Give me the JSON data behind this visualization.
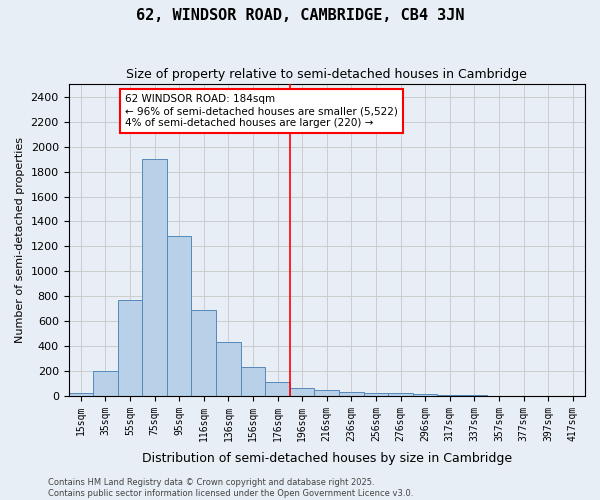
{
  "title": "62, WINDSOR ROAD, CAMBRIDGE, CB4 3JN",
  "subtitle": "Size of property relative to semi-detached houses in Cambridge",
  "xlabel": "Distribution of semi-detached houses by size in Cambridge",
  "ylabel": "Number of semi-detached properties",
  "bar_values": [
    25,
    200,
    770,
    1900,
    1280,
    690,
    435,
    230,
    110,
    65,
    45,
    30,
    25,
    20,
    15,
    10,
    5,
    3,
    2,
    1
  ],
  "categories": [
    "15sqm",
    "35sqm",
    "55sqm",
    "75sqm",
    "95sqm",
    "116sqm",
    "136sqm",
    "156sqm",
    "176sqm",
    "196sqm",
    "216sqm",
    "236sqm",
    "256sqm",
    "276sqm",
    "296sqm",
    "317sqm",
    "337sqm",
    "357sqm",
    "377sqm",
    "397sqm"
  ],
  "bar_color": "#b8d0e8",
  "bar_edge_color": "#5588bb",
  "grid_color": "#cccccc",
  "bg_color": "#e8eef5",
  "vline_x": 8.5,
  "vline_color": "red",
  "annotation_title": "62 WINDSOR ROAD: 184sqm",
  "annotation_line1": "← 96% of semi-detached houses are smaller (5,522)",
  "annotation_line2": "4% of semi-detached houses are larger (220) →",
  "annotation_box_color": "white",
  "annotation_box_edge": "red",
  "footer1": "Contains HM Land Registry data © Crown copyright and database right 2025.",
  "footer2": "Contains public sector information licensed under the Open Government Licence v3.0.",
  "ylim": [
    0,
    2500
  ],
  "yticks": [
    0,
    200,
    400,
    600,
    800,
    1000,
    1200,
    1400,
    1600,
    1800,
    2000,
    2200,
    2400
  ],
  "extra_tick_label": "417sqm"
}
